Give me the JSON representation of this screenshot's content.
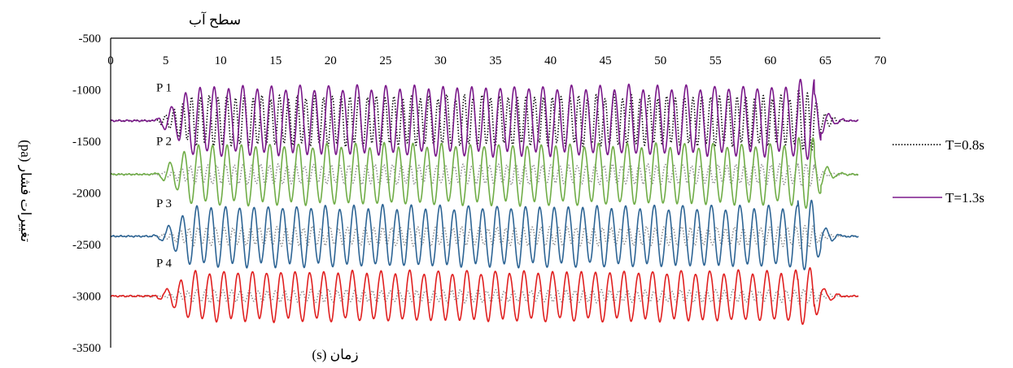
{
  "chart_data": {
    "type": "line",
    "xlabel": "زمان (s)",
    "ylabel": "تغییرات فشار (pa)",
    "surface_label": "سطح آب",
    "x_ticks": [
      0,
      5,
      10,
      15,
      20,
      25,
      30,
      35,
      40,
      45,
      50,
      55,
      60,
      65,
      70
    ],
    "y_ticks": [
      -500,
      -1000,
      -1500,
      -2000,
      -2500,
      -3000,
      -3500
    ],
    "xlim": [
      0,
      70
    ],
    "ylim": [
      -3500,
      -500
    ],
    "x_axis_at_y": -500,
    "legend_position": "right",
    "legend": [
      {
        "label": "T=0.8s",
        "style": "dotted",
        "color": "#000000"
      },
      {
        "label": "T=1.3s",
        "style": "solid",
        "color": "#7b1a8b"
      }
    ],
    "probes": [
      {
        "label": "P 1",
        "baseline": -1300,
        "amp_long": 320,
        "amp_short": 230,
        "color_long": "#7b1a8b",
        "color_short": "#000000"
      },
      {
        "label": "P 2",
        "baseline": -1820,
        "amp_long": 280,
        "amp_short": 90,
        "color_long": "#70ad47",
        "color_short": "#8c8c8c"
      },
      {
        "label": "P 3",
        "baseline": -2420,
        "amp_long": 280,
        "amp_short": 85,
        "color_long": "#2e6595",
        "color_short": "#8c8c8c"
      },
      {
        "label": "P 4",
        "baseline": -3000,
        "amp_long": 230,
        "amp_short": 55,
        "color_long": "#e02020",
        "color_short": "#8c8c8c"
      }
    ],
    "series": [
      {
        "name": "T=0.8s",
        "period": 0.8
      },
      {
        "name": "T=1.3s",
        "period": 1.3
      }
    ],
    "wave_start": 3.5,
    "wave_full": 8.0,
    "wave_end": 64.0,
    "decay_end": 67.5,
    "x_end": 68.0
  }
}
